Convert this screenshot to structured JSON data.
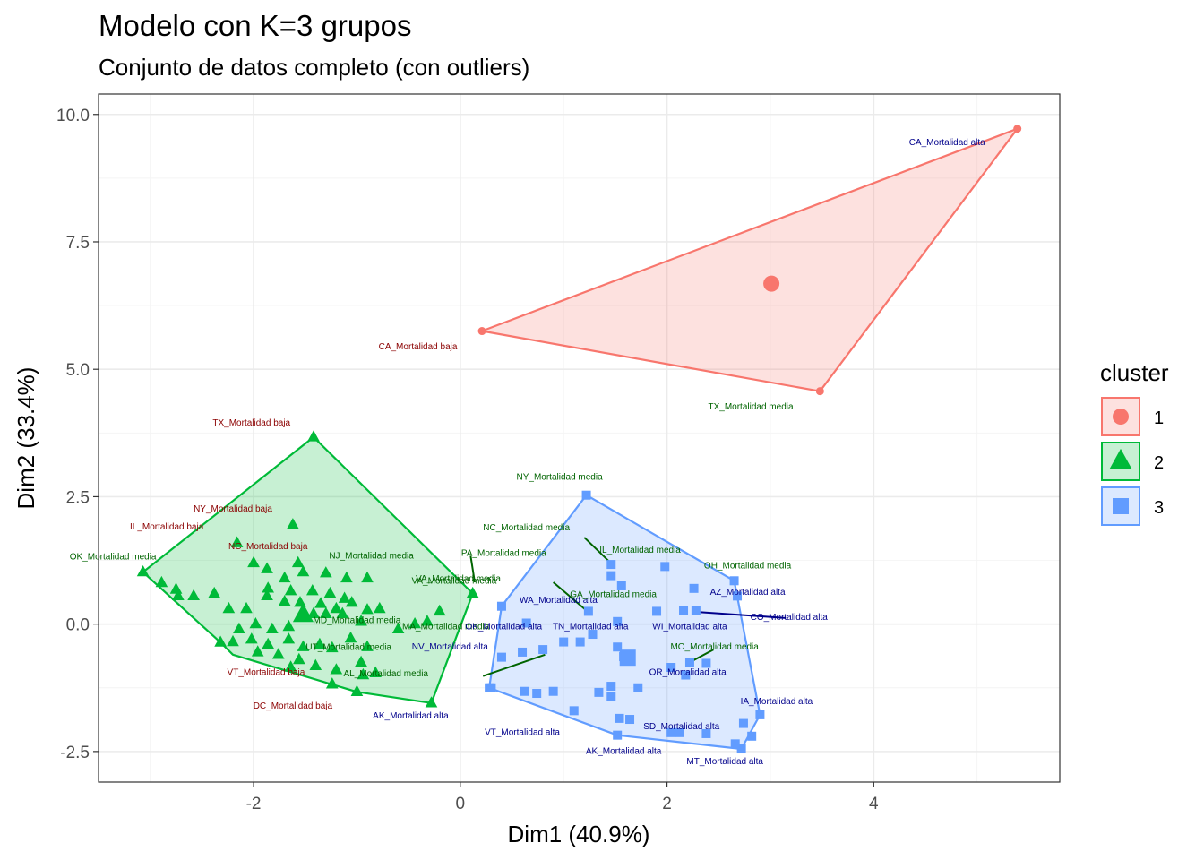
{
  "chart_data": {
    "type": "scatter",
    "title": "Modelo con K=3 grupos",
    "subtitle": "Conjunto de datos completo (con outliers)",
    "xlabel": "Dim1 (40.9%)",
    "ylabel": "Dim2 (33.4%)",
    "xlim": [
      -3.5,
      5.8
    ],
    "ylim": [
      -3.1,
      10.4
    ],
    "xticks": [
      -2,
      0,
      2,
      4
    ],
    "xtick_labels": [
      "-2",
      "0",
      "2",
      "4"
    ],
    "yticks": [
      -2.5,
      0.0,
      2.5,
      5.0,
      7.5,
      10.0
    ],
    "ytick_labels": [
      "-2.5",
      "0.0",
      "2.5",
      "5.0",
      "7.5",
      "10.0"
    ],
    "grid": true,
    "legend": {
      "title": "cluster",
      "position": "right",
      "entries": [
        {
          "label": "1",
          "shape": "circle",
          "color": "#F8766D"
        },
        {
          "label": "2",
          "shape": "triangle",
          "color": "#00BA38"
        },
        {
          "label": "3",
          "shape": "square",
          "color": "#619CFF"
        }
      ]
    },
    "colors": {
      "1": "#F8766D",
      "2": "#00BA38",
      "3": "#619CFF",
      "label_baja": "#8B0000",
      "label_media": "#006400",
      "label_alta": "#00008B"
    },
    "series": [
      {
        "name": "1",
        "shape": "circle",
        "centroid": [
          3.01,
          6.68
        ],
        "hull": [
          [
            0.21,
            5.75
          ],
          [
            5.39,
            9.72
          ],
          [
            3.48,
            4.57
          ]
        ],
        "points": [
          [
            0.21,
            5.75
          ],
          [
            5.39,
            9.72
          ],
          [
            3.48,
            4.57
          ]
        ]
      },
      {
        "name": "2",
        "shape": "triangle",
        "centroid": [
          -1.52,
          0.18
        ],
        "hull": [
          [
            -3.07,
            1.02
          ],
          [
            -1.42,
            3.67
          ],
          [
            0.12,
            0.6
          ],
          [
            -0.28,
            -1.55
          ],
          [
            -1.0,
            -1.33
          ],
          [
            -2.2,
            -0.6
          ],
          [
            -2.32,
            -0.36
          ]
        ],
        "points": [
          [
            -3.07,
            1.02
          ],
          [
            -1.42,
            3.67
          ],
          [
            0.12,
            0.6
          ],
          [
            -0.28,
            -1.55
          ],
          [
            -1.0,
            -1.33
          ],
          [
            -2.32,
            -0.36
          ],
          [
            -2.89,
            0.81
          ],
          [
            -2.75,
            0.68
          ],
          [
            -2.73,
            0.55
          ],
          [
            -2.58,
            0.55
          ],
          [
            -2.38,
            0.6
          ],
          [
            -2.16,
            1.59
          ],
          [
            -2.0,
            1.2
          ],
          [
            -1.62,
            1.95
          ],
          [
            -1.57,
            1.2
          ],
          [
            -1.87,
            1.08
          ],
          [
            -1.7,
            0.9
          ],
          [
            -1.52,
            1.02
          ],
          [
            -1.3,
            1.0
          ],
          [
            -1.1,
            0.9
          ],
          [
            -0.9,
            0.9
          ],
          [
            -2.24,
            0.3
          ],
          [
            -1.86,
            0.7
          ],
          [
            -1.64,
            0.65
          ],
          [
            -1.43,
            0.65
          ],
          [
            -1.26,
            0.6
          ],
          [
            -1.12,
            0.5
          ],
          [
            -2.07,
            0.3
          ],
          [
            -1.87,
            0.55
          ],
          [
            -1.7,
            0.44
          ],
          [
            -1.55,
            0.42
          ],
          [
            -1.35,
            0.4
          ],
          [
            -1.2,
            0.3
          ],
          [
            -1.05,
            0.42
          ],
          [
            -0.9,
            0.28
          ],
          [
            -2.14,
            -0.1
          ],
          [
            -1.98,
            0.0
          ],
          [
            -1.82,
            -0.1
          ],
          [
            -1.66,
            -0.05
          ],
          [
            -1.54,
            0.15
          ],
          [
            -1.42,
            0.2
          ],
          [
            -1.3,
            0.2
          ],
          [
            -1.14,
            0.2
          ],
          [
            -0.96,
            0.05
          ],
          [
            -0.78,
            0.3
          ],
          [
            -2.2,
            -0.35
          ],
          [
            -2.02,
            -0.3
          ],
          [
            -1.86,
            -0.4
          ],
          [
            -1.66,
            -0.3
          ],
          [
            -1.52,
            -0.45
          ],
          [
            -1.36,
            -0.4
          ],
          [
            -1.24,
            -0.47
          ],
          [
            -1.06,
            -0.28
          ],
          [
            -0.9,
            -0.45
          ],
          [
            -0.6,
            -0.1
          ],
          [
            -0.44,
            0.0
          ],
          [
            -0.32,
            0.05
          ],
          [
            -0.2,
            0.25
          ],
          [
            -1.96,
            -0.55
          ],
          [
            -1.76,
            -0.6
          ],
          [
            -1.56,
            -0.7
          ],
          [
            -1.4,
            -0.82
          ],
          [
            -1.2,
            -0.9
          ],
          [
            -0.96,
            -0.75
          ],
          [
            -0.94,
            -1.0
          ],
          [
            -0.82,
            -0.96
          ],
          [
            -1.24,
            -1.18
          ],
          [
            -1.64,
            -0.85
          ]
        ]
      },
      {
        "name": "3",
        "shape": "square",
        "centroid": [
          1.62,
          -0.66
        ],
        "hull": [
          [
            1.22,
            2.53
          ],
          [
            2.65,
            0.85
          ],
          [
            2.9,
            -1.78
          ],
          [
            2.72,
            -2.45
          ],
          [
            1.52,
            -2.18
          ],
          [
            0.28,
            -1.25
          ],
          [
            0.4,
            0.35
          ]
        ],
        "points": [
          [
            1.22,
            2.53
          ],
          [
            2.65,
            0.85
          ],
          [
            2.9,
            -1.78
          ],
          [
            2.72,
            -2.45
          ],
          [
            1.52,
            -2.18
          ],
          [
            0.28,
            -1.25
          ],
          [
            0.4,
            0.35
          ],
          [
            1.46,
            1.17
          ],
          [
            1.46,
            0.95
          ],
          [
            1.56,
            0.75
          ],
          [
            1.98,
            1.13
          ],
          [
            2.26,
            0.7
          ],
          [
            2.68,
            0.55
          ],
          [
            2.16,
            0.27
          ],
          [
            2.28,
            0.27
          ],
          [
            1.9,
            0.25
          ],
          [
            1.24,
            0.25
          ],
          [
            1.52,
            0.05
          ],
          [
            0.64,
            0.02
          ],
          [
            1.28,
            -0.2
          ],
          [
            1.16,
            -0.35
          ],
          [
            1.0,
            -0.35
          ],
          [
            0.8,
            -0.5
          ],
          [
            0.6,
            -0.55
          ],
          [
            0.4,
            -0.65
          ],
          [
            1.52,
            -0.45
          ],
          [
            1.62,
            -0.66
          ],
          [
            1.58,
            -0.64
          ],
          [
            2.04,
            -0.85
          ],
          [
            2.22,
            -0.75
          ],
          [
            2.38,
            -0.77
          ],
          [
            2.18,
            -1.0
          ],
          [
            1.72,
            -1.25
          ],
          [
            1.46,
            -1.22
          ],
          [
            0.3,
            -1.25
          ],
          [
            0.62,
            -1.32
          ],
          [
            0.74,
            -1.36
          ],
          [
            0.9,
            -1.32
          ],
          [
            1.34,
            -1.34
          ],
          [
            1.46,
            -1.42
          ],
          [
            1.1,
            -1.7
          ],
          [
            1.54,
            -1.85
          ],
          [
            1.64,
            -1.87
          ],
          [
            2.04,
            -2.13
          ],
          [
            2.12,
            -2.13
          ],
          [
            2.38,
            -2.15
          ],
          [
            2.66,
            -2.35
          ],
          [
            2.82,
            -2.2
          ],
          [
            2.74,
            -1.95
          ]
        ]
      }
    ],
    "labels": [
      {
        "text": "CA_Mortalidad alta",
        "x": 4.71,
        "y": 9.4,
        "cls": "alta"
      },
      {
        "text": "CA_Mortalidad baja",
        "x": -0.41,
        "y": 5.39,
        "cls": "baja"
      },
      {
        "text": "TX_Mortalidad media",
        "x": 2.81,
        "y": 4.21,
        "cls": "media"
      },
      {
        "text": "TX_Mortalidad baja",
        "x": -2.02,
        "y": 3.9,
        "cls": "baja"
      },
      {
        "text": "NY_Mortalidad baja",
        "x": -2.2,
        "y": 2.21,
        "cls": "baja"
      },
      {
        "text": "IL_Mortalidad baja",
        "x": -2.84,
        "y": 1.86,
        "cls": "baja"
      },
      {
        "text": "NC_Mortalidad baja",
        "x": -1.86,
        "y": 1.47,
        "cls": "baja"
      },
      {
        "text": "OK_Mortalidad media",
        "x": -3.36,
        "y": 1.27,
        "cls": "media"
      },
      {
        "text": "NJ_Mortalidad media",
        "x": -0.86,
        "y": 1.29,
        "cls": "media"
      },
      {
        "text": "VA_Mortalidad media",
        "x": -0.06,
        "y": 0.79,
        "cls": "media"
      },
      {
        "text": "MD_Mortalidad media",
        "x": -1.0,
        "y": 0.02,
        "cls": "media"
      },
      {
        "text": "MA_Mortalidad media",
        "x": -0.14,
        "y": -0.1,
        "cls": "media"
      },
      {
        "text": "UT_Mortalidad media",
        "x": -1.08,
        "y": -0.51,
        "cls": "media"
      },
      {
        "text": "AL_Mortalidad media",
        "x": -0.72,
        "y": -1.03,
        "cls": "media"
      },
      {
        "text": "VT_Mortalidad baja",
        "x": -1.88,
        "y": -1.0,
        "cls": "baja"
      },
      {
        "text": "DC_Mortalidad baja",
        "x": -1.62,
        "y": -1.66,
        "cls": "baja"
      },
      {
        "text": "AK_Mortalidad alta",
        "x": -0.48,
        "y": -1.85,
        "cls": "alta"
      },
      {
        "text": "NY_Mortalidad media",
        "x": 0.96,
        "y": 2.83,
        "cls": "media"
      },
      {
        "text": "NC_Mortalidad media",
        "x": 0.64,
        "y": 1.84,
        "cls": "media"
      },
      {
        "text": "PA_Mortalidad media",
        "x": 0.42,
        "y": 1.34,
        "cls": "media"
      },
      {
        "text": "IL_Mortalidad media",
        "x": 1.74,
        "y": 1.4,
        "cls": "media"
      },
      {
        "text": "OH_Mortalidad media",
        "x": 2.78,
        "y": 1.09,
        "cls": "media"
      },
      {
        "text": "VA_Mortalidad media",
        "x": -0.02,
        "y": 0.84,
        "cls": "media"
      },
      {
        "text": "WA_Mortalidad alta",
        "x": 0.95,
        "y": 0.42,
        "cls": "alta"
      },
      {
        "text": "GA_Mortalidad media",
        "x": 1.48,
        "y": 0.53,
        "cls": "media"
      },
      {
        "text": "AZ_Mortalidad alta",
        "x": 2.78,
        "y": 0.57,
        "cls": "alta"
      },
      {
        "text": "CO_Mortalidad alta",
        "x": 3.18,
        "y": 0.08,
        "cls": "alta"
      },
      {
        "text": "OK_Mortalidad alta",
        "x": 0.42,
        "y": -0.1,
        "cls": "alta"
      },
      {
        "text": "TN_Mortalidad alta",
        "x": 1.26,
        "y": -0.1,
        "cls": "alta"
      },
      {
        "text": "WI_Mortalidad alta",
        "x": 2.22,
        "y": -0.1,
        "cls": "alta"
      },
      {
        "text": "MO_Mortalidad media",
        "x": 2.46,
        "y": -0.5,
        "cls": "media"
      },
      {
        "text": "NV_Mortalidad alta",
        "x": -0.1,
        "y": -0.5,
        "cls": "alta"
      },
      {
        "text": "OR_Mortalidad alta",
        "x": 2.2,
        "y": -1.0,
        "cls": "alta"
      },
      {
        "text": "IA_Mortalidad alta",
        "x": 3.06,
        "y": -1.57,
        "cls": "alta"
      },
      {
        "text": "SD_Mortalidad alta",
        "x": 2.14,
        "y": -2.06,
        "cls": "alta"
      },
      {
        "text": "VT_Mortalidad alta",
        "x": 0.6,
        "y": -2.18,
        "cls": "alta"
      },
      {
        "text": "AK_Mortalidad alta",
        "x": 1.58,
        "y": -2.55,
        "cls": "alta"
      },
      {
        "text": "MT_Mortalidad alta",
        "x": 2.56,
        "y": -2.75,
        "cls": "alta"
      }
    ],
    "connectors": [
      {
        "from": [
          0.1,
          1.34
        ],
        "to": [
          0.14,
          0.82
        ],
        "cls": "media"
      },
      {
        "from": [
          1.2,
          1.7
        ],
        "to": [
          1.47,
          1.17
        ],
        "cls": "media"
      },
      {
        "from": [
          0.9,
          0.82
        ],
        "to": [
          1.23,
          0.25
        ],
        "cls": "media"
      },
      {
        "from": [
          3.15,
          0.12
        ],
        "to": [
          2.28,
          0.24
        ],
        "cls": "alta"
      },
      {
        "from": [
          2.45,
          -0.5
        ],
        "to": [
          2.22,
          -0.75
        ],
        "cls": "media"
      },
      {
        "from": [
          0.22,
          -1.02
        ],
        "to": [
          0.82,
          -0.6
        ],
        "cls": "media"
      }
    ]
  }
}
